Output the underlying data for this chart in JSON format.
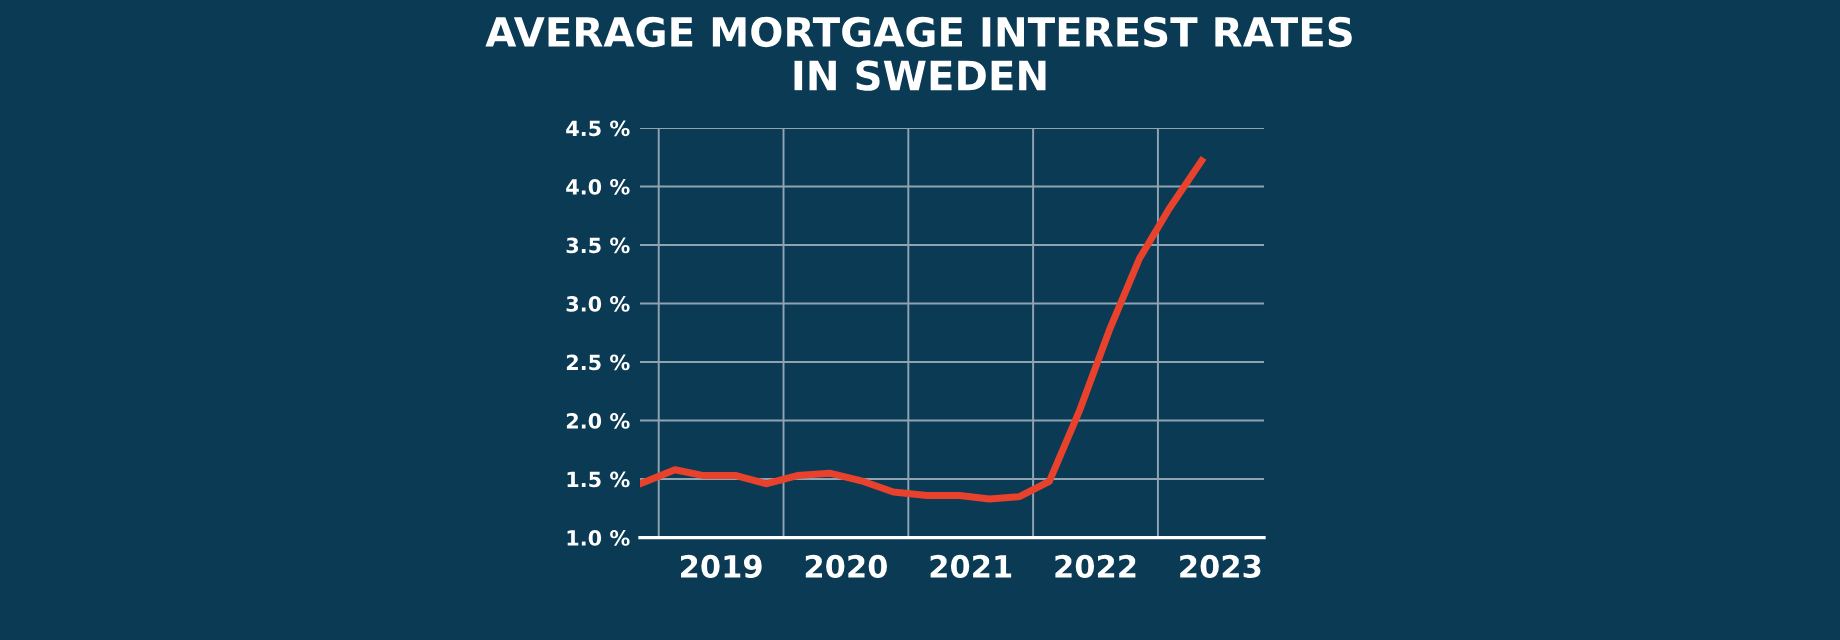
{
  "chart_data": {
    "type": "line",
    "title": "AVERAGE MORTGAGE INTEREST RATES\nIN SWEDEN",
    "x": [
      2018.85,
      2019.13,
      2019.36,
      2019.62,
      2019.86,
      2020.11,
      2020.37,
      2020.64,
      2020.88,
      2021.15,
      2021.41,
      2021.65,
      2021.89,
      2022.13,
      2022.37,
      2022.61,
      2022.85,
      2023.09,
      2023.35
    ],
    "series": [
      {
        "color": "#e8412c",
        "values": [
          1.46,
          1.58,
          1.53,
          1.53,
          1.46,
          1.53,
          1.55,
          1.48,
          1.39,
          1.36,
          1.36,
          1.33,
          1.35,
          1.48,
          2.08,
          2.77,
          3.38,
          3.81,
          4.22
        ]
      }
    ],
    "xlim": [
      2018.85,
      2023.85
    ],
    "xticks": [
      {
        "value": 2019,
        "label": null
      },
      {
        "value": 2020,
        "label": null
      },
      {
        "value": 2021,
        "label": null
      },
      {
        "value": 2022,
        "label": null
      },
      {
        "value": 2023,
        "label": null
      },
      {
        "value": 2019.5,
        "label": "2019"
      },
      {
        "value": 2020.5,
        "label": "2020"
      },
      {
        "value": 2021.5,
        "label": "2021"
      },
      {
        "value": 2022.5,
        "label": "2022"
      },
      {
        "value": 2023.5,
        "label": "2023"
      }
    ],
    "ylim": [
      1.0,
      4.5
    ],
    "yticks": [
      {
        "value": 1.0,
        "label": "1.0 %"
      },
      {
        "value": 1.5,
        "label": "1.5 %"
      },
      {
        "value": 2.0,
        "label": "2.0 %"
      },
      {
        "value": 2.5,
        "label": "2.5 %"
      },
      {
        "value": 3.0,
        "label": "3.0 %"
      },
      {
        "value": 3.5,
        "label": "3.5 %"
      },
      {
        "value": 4.0,
        "label": "4.0 %"
      },
      {
        "value": 4.5,
        "label": "4.5 %"
      }
    ],
    "grid": true,
    "marker": "none",
    "line_style": "solid"
  }
}
